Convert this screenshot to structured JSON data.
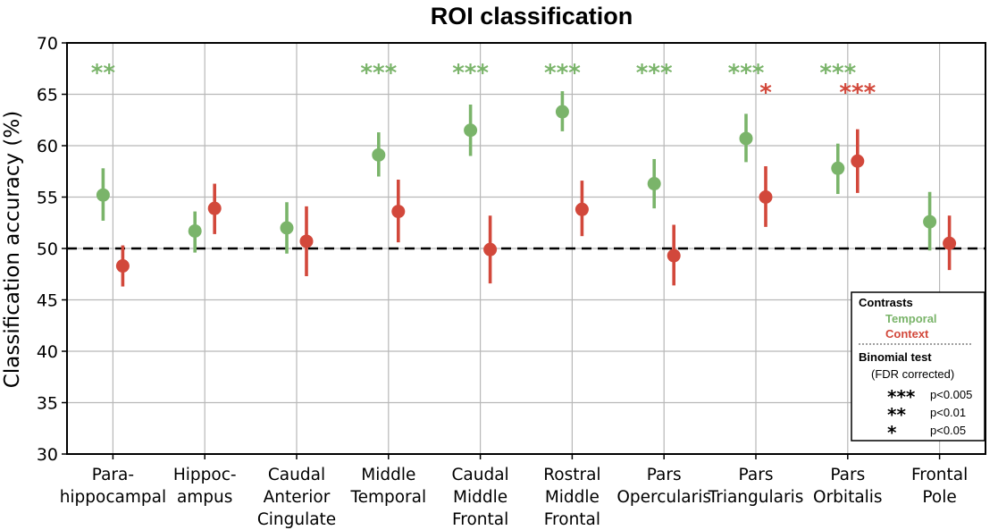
{
  "chart_data": {
    "type": "scatter",
    "title": "ROI classification",
    "xlabel": "",
    "ylabel": "Classification accuracy (%)",
    "ylim": [
      30,
      70
    ],
    "yticks": [
      "30",
      "35",
      "40",
      "45",
      "50",
      "55",
      "60",
      "65",
      "70"
    ],
    "grid": true,
    "chance_level": 50,
    "categories": [
      [
        "Para-",
        "hippocampal"
      ],
      [
        "Hippoc-",
        "ampus"
      ],
      [
        "Caudal",
        "Anterior",
        "Cingulate"
      ],
      [
        "Middle",
        "Temporal"
      ],
      [
        "Caudal",
        "Middle",
        "Frontal"
      ],
      [
        "Rostral",
        "Middle",
        "Frontal"
      ],
      [
        "Pars",
        "Opercularis"
      ],
      [
        "Pars",
        "Triangularis"
      ],
      [
        "Pars",
        "Orbitalis"
      ],
      [
        "Frontal",
        "Pole"
      ]
    ],
    "series": [
      {
        "name": "Temporal",
        "color": "#7ab46a",
        "values": [
          55.2,
          51.7,
          52.0,
          59.1,
          61.5,
          63.3,
          56.3,
          60.7,
          57.8,
          52.6
        ],
        "err_low": [
          52.7,
          49.6,
          49.5,
          57.0,
          59.0,
          61.4,
          53.9,
          58.4,
          55.3,
          49.8
        ],
        "err_high": [
          57.8,
          53.6,
          54.5,
          61.3,
          64.0,
          65.3,
          58.7,
          63.1,
          60.2,
          55.5
        ],
        "significance": [
          "**",
          "",
          "",
          "***",
          "***",
          "***",
          "***",
          "***",
          "***",
          ""
        ]
      },
      {
        "name": "Context",
        "color": "#d2483b",
        "values": [
          48.3,
          53.9,
          50.7,
          53.6,
          49.9,
          53.8,
          49.3,
          55.0,
          58.5,
          50.5
        ],
        "err_low": [
          46.3,
          51.4,
          47.3,
          50.6,
          46.6,
          51.2,
          46.4,
          52.1,
          55.4,
          47.9
        ],
        "err_high": [
          50.3,
          56.3,
          54.1,
          56.7,
          53.2,
          56.6,
          52.3,
          58.0,
          61.6,
          53.2
        ],
        "significance": [
          "",
          "",
          "",
          "",
          "",
          "",
          "",
          "*",
          "***",
          ""
        ]
      }
    ],
    "legend": {
      "position": "bottom-right",
      "contrasts_title": "Contrasts",
      "binomial_title": "Binomial test",
      "binomial_subtitle": "(FDR corrected)",
      "levels": [
        {
          "stars": "***",
          "label": "p<0.005"
        },
        {
          "stars": "**",
          "label": "p<0.01"
        },
        {
          "stars": "*",
          "label": "p<0.05"
        }
      ]
    }
  }
}
